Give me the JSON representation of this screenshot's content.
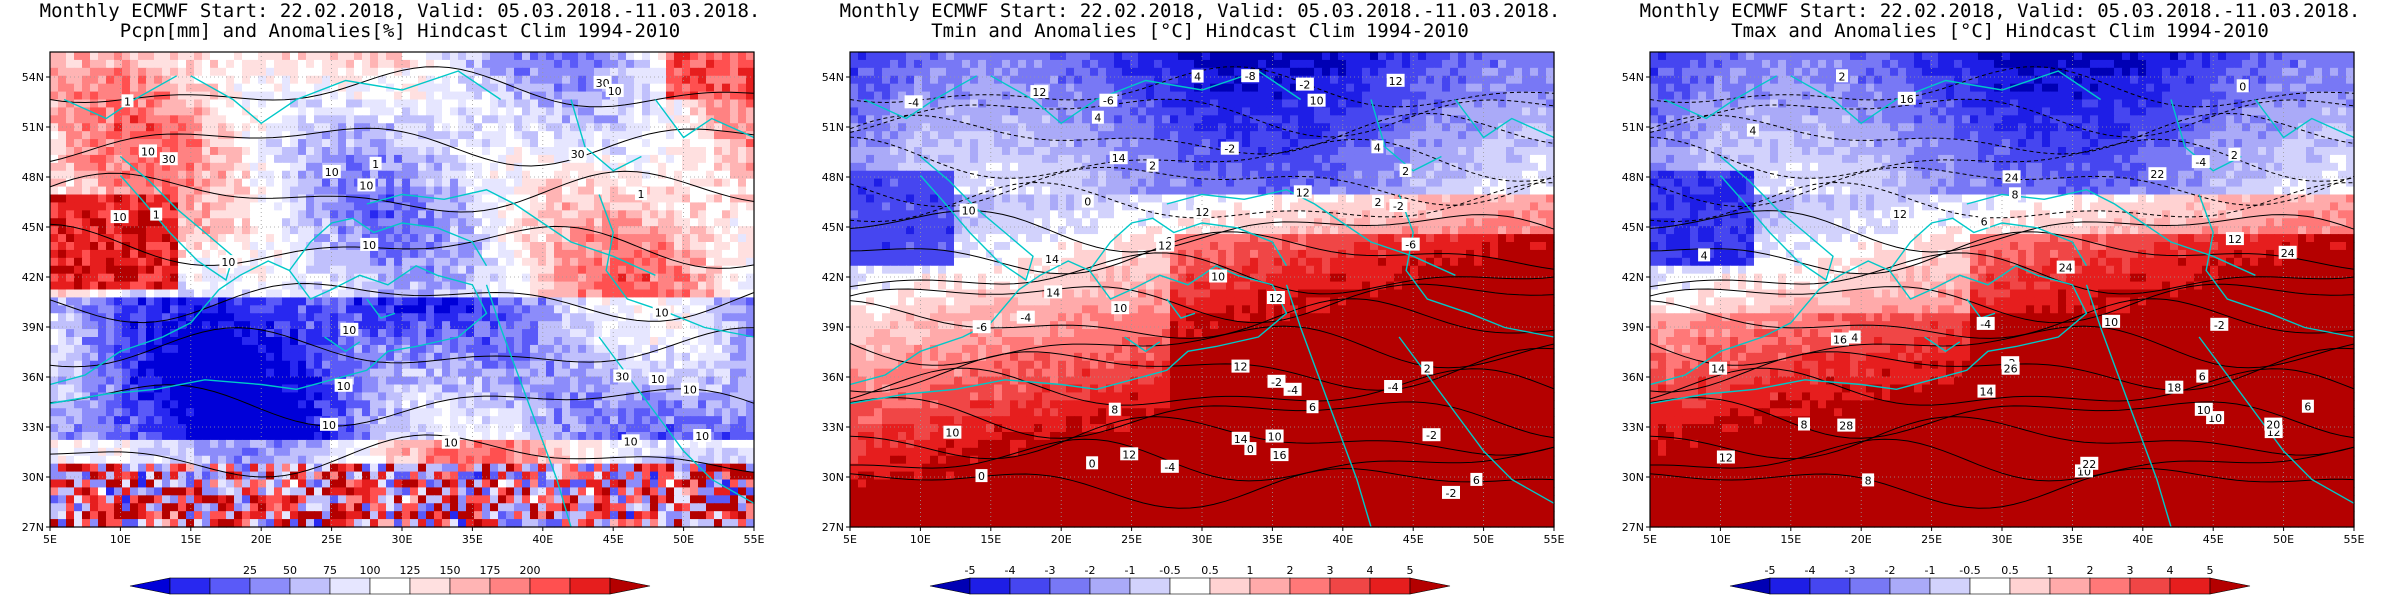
{
  "panels": [
    {
      "id": "pcpn",
      "title1": "Monthly ECMWF Start: 22.02.2018, Valid: 05.03.2018.-11.03.2018.",
      "title2": "Pcpn[mm] and Anomalies[%] Hindcast Clim 1994-2010",
      "lat_labels": [
        "54N",
        "51N",
        "48N",
        "45N",
        "42N",
        "39N",
        "36N",
        "33N",
        "30N",
        "27N"
      ],
      "lon_labels": [
        "5E",
        "10E",
        "15E",
        "20E",
        "25E",
        "30E",
        "35E",
        "40E",
        "45E",
        "50E",
        "55E"
      ],
      "colorbar": {
        "labels": [
          "25",
          "50",
          "75",
          "100",
          "125",
          "150",
          "175",
          "200"
        ],
        "colors": [
          "#0000d8",
          "#2828f0",
          "#5a5af8",
          "#8c8cfa",
          "#c0c0fc",
          "#e6e6ff",
          "#ffffff",
          "#ffe0e0",
          "#ffb4b4",
          "#ff8282",
          "#ff5050",
          "#e61e1e",
          "#b40000"
        ]
      },
      "contour_labels": [
        "10",
        "10",
        "10",
        "10",
        "30",
        "30",
        "30",
        "30",
        "10",
        "10",
        "10",
        "10",
        "10",
        "10",
        "10",
        "10",
        "1",
        "1",
        "10",
        "1",
        "10",
        "10",
        "10",
        "1"
      ],
      "scheme": "precip"
    },
    {
      "id": "tmin",
      "title1": "Monthly ECMWF Start: 22.02.2018, Valid: 05.03.2018.-11.03.2018.",
      "title2": "Tmin and Anomalies [°C] Hindcast Clim 1994-2010",
      "lat_labels": [
        "54N",
        "51N",
        "48N",
        "45N",
        "42N",
        "39N",
        "36N",
        "33N",
        "30N",
        "27N"
      ],
      "lon_labels": [
        "5E",
        "10E",
        "15E",
        "20E",
        "25E",
        "30E",
        "35E",
        "40E",
        "45E",
        "50E",
        "55E"
      ],
      "colorbar": {
        "labels": [
          "-5",
          "-4",
          "-3",
          "-2",
          "-1",
          "-0.5",
          "0.5",
          "1",
          "2",
          "3",
          "4",
          "5"
        ],
        "colors": [
          "#0000b4",
          "#1e1ee6",
          "#4646f0",
          "#7878f5",
          "#aaaaf8",
          "#d2d2fc",
          "#ffffff",
          "#ffd2d2",
          "#ffaaaa",
          "#ff7878",
          "#f04646",
          "#e61e1e",
          "#b40000"
        ]
      },
      "contour_labels": [
        "-6",
        "-4",
        "-8",
        "-4",
        "-2",
        "-6",
        "-2",
        "-6",
        "-4",
        "-2",
        "-4",
        "-2",
        "-2",
        "0",
        "-4",
        "0",
        "-2",
        "2",
        "6",
        "4",
        "10",
        "2",
        "0",
        "8",
        "6",
        "4",
        "2",
        "10",
        "12",
        "12",
        "14",
        "14",
        "16",
        "10",
        "10",
        "10",
        "12",
        "14",
        "12",
        "12",
        "12",
        "12",
        "14",
        "12",
        "2",
        "0",
        "4",
        "6",
        "10"
      ],
      "scheme": "temp"
    },
    {
      "id": "tmax",
      "title1": "Monthly ECMWF Start: 22.02.2018, Valid: 05.03.2018.-11.03.2018.",
      "title2": "Tmax and Anomalies [°C] Hindcast Clim 1994-2010",
      "lat_labels": [
        "54N",
        "51N",
        "48N",
        "45N",
        "42N",
        "39N",
        "36N",
        "33N",
        "30N",
        "27N"
      ],
      "lon_labels": [
        "5E",
        "10E",
        "15E",
        "20E",
        "25E",
        "30E",
        "35E",
        "40E",
        "45E",
        "50E",
        "55E"
      ],
      "colorbar": {
        "labels": [
          "-5",
          "-4",
          "-3",
          "-2",
          "-1",
          "-0.5",
          "0.5",
          "1",
          "2",
          "3",
          "4",
          "5"
        ],
        "colors": [
          "#0000b4",
          "#1e1ee6",
          "#4646f0",
          "#7878f5",
          "#aaaaf8",
          "#d2d2fc",
          "#ffffff",
          "#ffd2d2",
          "#ffaaaa",
          "#ff7878",
          "#f04646",
          "#e61e1e",
          "#b40000"
        ]
      },
      "contour_labels": [
        "-4",
        "2",
        "-4",
        "-2",
        "4",
        "2",
        "-2",
        "0",
        "4",
        "6",
        "6",
        "4",
        "8",
        "10",
        "8",
        "6",
        "8",
        "10",
        "12",
        "10",
        "12",
        "14",
        "10",
        "16",
        "18",
        "20",
        "22",
        "24",
        "22",
        "24",
        "26",
        "28",
        "24",
        "14",
        "16",
        "12",
        "12"
      ],
      "scheme": "temp"
    }
  ]
}
